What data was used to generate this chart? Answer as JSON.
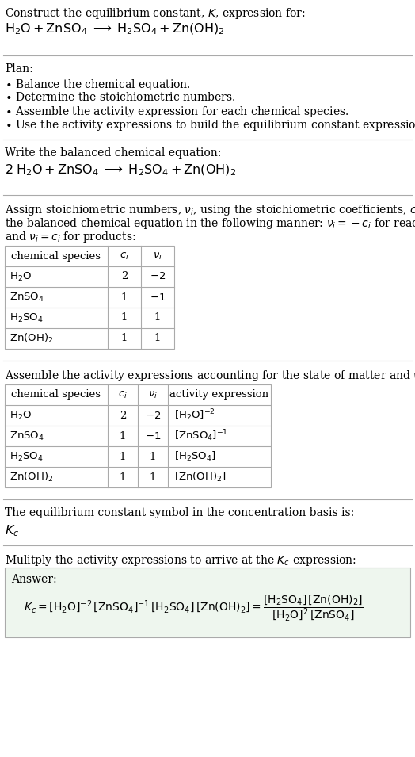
{
  "bg_color": "#ffffff",
  "text_color": "#000000",
  "separator_color": "#aaaaaa",
  "table_border_color": "#aaaaaa",
  "answer_box_color": "#eef6ee",
  "font_size_title": 10.5,
  "font_size_body": 10.0,
  "font_size_table": 9.5,
  "fig_width": 5.24,
  "fig_height": 9.55,
  "dpi": 100
}
